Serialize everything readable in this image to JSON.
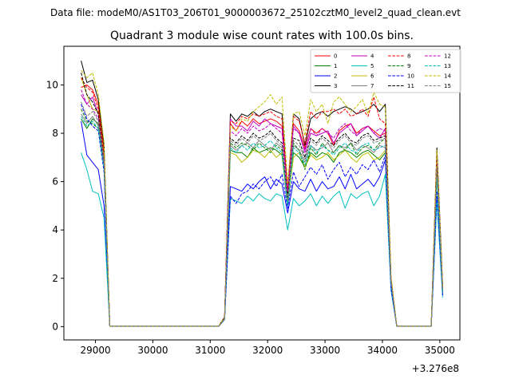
{
  "figure": {
    "suptitle": "Data file: modeM0/AS1T03_206T01_9000003672_25102cztM0_level2_quad_clean.evt"
  },
  "chart_data": {
    "type": "line",
    "title": "Quadrant 3 module wise count rates with 100.0s bins.",
    "xlabel": "",
    "ylabel": "",
    "x_offset_label": "+3.276e8",
    "xlim": [
      28450,
      35350
    ],
    "ylim": [
      -0.55,
      11.6
    ],
    "xticks": [
      29000,
      30000,
      31000,
      32000,
      33000,
      34000,
      35000
    ],
    "yticks": [
      0,
      2,
      4,
      6,
      8,
      10
    ],
    "grid": false,
    "legend_placement": "top-right",
    "legend_columns": 4,
    "x": [
      28750,
      28850,
      28950,
      29050,
      29150,
      29250,
      29350,
      29450,
      29550,
      29650,
      29750,
      29850,
      29950,
      30050,
      30150,
      30250,
      30350,
      30450,
      30550,
      30650,
      30750,
      30850,
      30950,
      31050,
      31150,
      31250,
      31350,
      31450,
      31550,
      31650,
      31750,
      31850,
      31950,
      32050,
      32150,
      32250,
      32350,
      32450,
      32550,
      32650,
      32750,
      32850,
      32950,
      33050,
      33150,
      33250,
      33350,
      33450,
      33550,
      33650,
      33750,
      33850,
      33950,
      34050,
      34150,
      34250,
      34350,
      34450,
      34550,
      34650,
      34750,
      34850,
      34950,
      35050
    ],
    "series": [
      {
        "name": "0",
        "color": "#ff0000",
        "dash": "solid",
        "values": [
          9.9,
          10.0,
          9.8,
          9.2,
          7.3,
          0.02,
          0.02,
          0.02,
          0.02,
          0.02,
          0.02,
          0.02,
          0.02,
          0.02,
          0.02,
          0.02,
          0.02,
          0.02,
          0.02,
          0.02,
          0.02,
          0.02,
          0.02,
          0.02,
          0.02,
          0.4,
          8.4,
          8.1,
          8.5,
          8.3,
          8.6,
          8.4,
          8.5,
          8.6,
          8.5,
          8.3,
          5.8,
          8.4,
          8.1,
          7.4,
          8.2,
          8.0,
          8.2,
          8.0,
          7.5,
          8.1,
          8.3,
          8.4,
          8.0,
          8.2,
          8.3,
          8.1,
          7.9,
          8.0,
          2.0,
          0.02,
          0.02,
          0.02,
          0.02,
          0.02,
          0.02,
          0.02,
          7.0,
          1.5
        ]
      },
      {
        "name": "1",
        "color": "#008000",
        "dash": "solid",
        "values": [
          8.6,
          8.2,
          8.6,
          8.4,
          6.8,
          0.02,
          0.02,
          0.02,
          0.02,
          0.02,
          0.02,
          0.02,
          0.02,
          0.02,
          0.02,
          0.02,
          0.02,
          0.02,
          0.02,
          0.02,
          0.02,
          0.02,
          0.02,
          0.02,
          0.02,
          0.3,
          7.3,
          7.2,
          7.2,
          7.0,
          7.4,
          7.2,
          7.3,
          7.4,
          7.3,
          7.1,
          5.0,
          7.2,
          7.0,
          6.6,
          7.2,
          7.0,
          7.2,
          7.1,
          6.8,
          7.2,
          7.3,
          7.2,
          7.0,
          7.2,
          7.3,
          7.1,
          6.9,
          7.2,
          1.8,
          0.02,
          0.02,
          0.02,
          0.02,
          0.02,
          0.02,
          0.02,
          6.3,
          1.4
        ]
      },
      {
        "name": "2",
        "color": "#0000ff",
        "dash": "solid",
        "values": [
          8.5,
          7.1,
          6.8,
          6.5,
          5.0,
          0.02,
          0.02,
          0.02,
          0.02,
          0.02,
          0.02,
          0.02,
          0.02,
          0.02,
          0.02,
          0.02,
          0.02,
          0.02,
          0.02,
          0.02,
          0.02,
          0.02,
          0.02,
          0.02,
          0.02,
          0.3,
          5.8,
          5.7,
          5.6,
          5.9,
          5.7,
          6.0,
          6.2,
          5.7,
          6.1,
          5.9,
          4.7,
          6.0,
          5.7,
          5.6,
          6.1,
          5.6,
          6.0,
          5.7,
          5.8,
          6.2,
          5.7,
          6.3,
          5.7,
          5.9,
          6.1,
          5.8,
          6.2,
          6.9,
          1.6,
          0.02,
          0.02,
          0.02,
          0.02,
          0.02,
          0.02,
          0.02,
          5.3,
          1.3
        ]
      },
      {
        "name": "3",
        "color": "#000000",
        "dash": "solid",
        "values": [
          11.0,
          10.1,
          10.2,
          9.4,
          7.5,
          0.02,
          0.02,
          0.02,
          0.02,
          0.02,
          0.02,
          0.02,
          0.02,
          0.02,
          0.02,
          0.02,
          0.02,
          0.02,
          0.02,
          0.02,
          0.02,
          0.02,
          0.02,
          0.02,
          0.02,
          0.4,
          8.8,
          8.5,
          8.8,
          8.7,
          8.9,
          8.7,
          8.9,
          9.0,
          8.9,
          8.8,
          5.5,
          8.8,
          8.6,
          7.5,
          8.6,
          8.8,
          8.9,
          8.7,
          8.9,
          9.0,
          9.1,
          9.0,
          8.8,
          8.9,
          9.0,
          9.2,
          8.9,
          9.2,
          2.0,
          0.02,
          0.02,
          0.02,
          0.02,
          0.02,
          0.02,
          0.02,
          7.4,
          1.7
        ]
      },
      {
        "name": "4",
        "color": "#bf00bf",
        "dash": "solid",
        "values": [
          9.6,
          9.2,
          9.5,
          8.8,
          7.0,
          0.02,
          0.02,
          0.02,
          0.02,
          0.02,
          0.02,
          0.02,
          0.02,
          0.02,
          0.02,
          0.02,
          0.02,
          0.02,
          0.02,
          0.02,
          0.02,
          0.02,
          0.02,
          0.02,
          0.02,
          0.4,
          8.6,
          8.3,
          8.3,
          8.1,
          8.5,
          8.3,
          8.6,
          8.4,
          8.3,
          8.2,
          5.6,
          8.3,
          8.0,
          7.2,
          8.0,
          7.9,
          8.0,
          8.1,
          7.6,
          8.0,
          8.2,
          8.4,
          7.9,
          8.1,
          8.3,
          8.0,
          7.8,
          8.2,
          1.9,
          0.02,
          0.02,
          0.02,
          0.02,
          0.02,
          0.02,
          0.02,
          6.8,
          1.5
        ]
      },
      {
        "name": "5",
        "color": "#00bfbf",
        "dash": "solid",
        "values": [
          7.2,
          6.5,
          5.6,
          5.5,
          4.5,
          0.02,
          0.02,
          0.02,
          0.02,
          0.02,
          0.02,
          0.02,
          0.02,
          0.02,
          0.02,
          0.02,
          0.02,
          0.02,
          0.02,
          0.02,
          0.02,
          0.02,
          0.02,
          0.02,
          0.02,
          0.3,
          5.3,
          5.2,
          5.1,
          5.4,
          5.2,
          5.5,
          5.3,
          5.2,
          5.5,
          5.4,
          4.0,
          5.3,
          5.0,
          5.2,
          5.5,
          5.0,
          5.4,
          5.1,
          5.4,
          5.6,
          4.9,
          5.5,
          5.3,
          5.5,
          5.6,
          5.0,
          5.4,
          6.3,
          1.5,
          0.02,
          0.02,
          0.02,
          0.02,
          0.02,
          0.02,
          0.02,
          5.2,
          1.2
        ]
      },
      {
        "name": "6",
        "color": "#bfbf00",
        "dash": "solid",
        "values": [
          10.3,
          9.6,
          9.0,
          8.9,
          7.1,
          0.02,
          0.02,
          0.02,
          0.02,
          0.02,
          0.02,
          0.02,
          0.02,
          0.02,
          0.02,
          0.02,
          0.02,
          0.02,
          0.02,
          0.02,
          0.02,
          0.02,
          0.02,
          0.02,
          0.02,
          0.4,
          7.2,
          7.1,
          6.8,
          7.0,
          7.3,
          7.2,
          7.0,
          7.3,
          7.0,
          7.2,
          5.1,
          7.0,
          7.2,
          6.6,
          7.1,
          6.9,
          7.0,
          7.2,
          6.9,
          7.1,
          7.3,
          7.0,
          6.8,
          7.1,
          7.2,
          6.9,
          7.0,
          7.3,
          1.8,
          0.02,
          0.02,
          0.02,
          0.02,
          0.02,
          0.02,
          0.02,
          6.9,
          1.5
        ]
      },
      {
        "name": "7",
        "color": "#808080",
        "dash": "solid",
        "values": [
          8.8,
          8.4,
          8.7,
          8.3,
          6.7,
          0.02,
          0.02,
          0.02,
          0.02,
          0.02,
          0.02,
          0.02,
          0.02,
          0.02,
          0.02,
          0.02,
          0.02,
          0.02,
          0.02,
          0.02,
          0.02,
          0.02,
          0.02,
          0.02,
          0.02,
          0.3,
          7.5,
          7.3,
          7.5,
          7.6,
          7.4,
          7.7,
          7.5,
          7.3,
          7.6,
          7.4,
          5.2,
          7.5,
          7.3,
          6.8,
          7.5,
          7.3,
          7.4,
          7.6,
          7.2,
          7.5,
          7.4,
          7.6,
          7.3,
          7.5,
          7.4,
          7.2,
          7.5,
          7.4,
          1.8,
          0.02,
          0.02,
          0.02,
          0.02,
          0.02,
          0.02,
          0.02,
          6.6,
          1.4
        ]
      },
      {
        "name": "8",
        "color": "#ff0000",
        "dash": "dashed",
        "values": [
          10.3,
          9.9,
          9.7,
          9.0,
          7.2,
          0.02,
          0.02,
          0.02,
          0.02,
          0.02,
          0.02,
          0.02,
          0.02,
          0.02,
          0.02,
          0.02,
          0.02,
          0.02,
          0.02,
          0.02,
          0.02,
          0.02,
          0.02,
          0.02,
          0.02,
          0.4,
          8.5,
          8.4,
          8.7,
          8.6,
          8.8,
          8.7,
          8.8,
          8.9,
          8.7,
          8.6,
          5.7,
          8.7,
          8.5,
          7.6,
          8.9,
          8.6,
          8.9,
          8.9,
          9.0,
          8.8,
          9.0,
          8.7,
          8.8,
          9.0,
          8.7,
          9.5,
          8.6,
          8.4,
          2.0,
          0.02,
          0.02,
          0.02,
          0.02,
          0.02,
          0.02,
          0.02,
          7.2,
          1.6
        ]
      },
      {
        "name": "9",
        "color": "#008000",
        "dash": "dashed",
        "values": [
          9.0,
          8.5,
          8.4,
          8.2,
          6.7,
          0.02,
          0.02,
          0.02,
          0.02,
          0.02,
          0.02,
          0.02,
          0.02,
          0.02,
          0.02,
          0.02,
          0.02,
          0.02,
          0.02,
          0.02,
          0.02,
          0.02,
          0.02,
          0.02,
          0.02,
          0.3,
          7.6,
          7.4,
          7.6,
          7.5,
          7.3,
          7.6,
          7.4,
          7.2,
          7.5,
          7.3,
          5.1,
          7.6,
          7.3,
          6.5,
          7.4,
          7.1,
          7.6,
          7.3,
          7.2,
          7.5,
          7.3,
          7.6,
          7.1,
          7.4,
          7.5,
          7.3,
          7.6,
          7.8,
          1.8,
          0.02,
          0.02,
          0.02,
          0.02,
          0.02,
          0.02,
          0.02,
          6.4,
          1.4
        ]
      },
      {
        "name": "10",
        "color": "#0000ff",
        "dash": "dashed",
        "values": [
          9.2,
          8.6,
          8.3,
          8.1,
          6.4,
          0.02,
          0.02,
          0.02,
          0.02,
          0.02,
          0.02,
          0.02,
          0.02,
          0.02,
          0.02,
          0.02,
          0.02,
          0.02,
          0.02,
          0.02,
          0.02,
          0.02,
          0.02,
          0.02,
          0.02,
          0.3,
          5.4,
          5.1,
          5.5,
          5.6,
          5.9,
          5.7,
          6.0,
          6.2,
          5.8,
          6.3,
          4.9,
          6.4,
          5.8,
          6.2,
          6.6,
          6.3,
          6.7,
          6.1,
          6.5,
          6.8,
          6.2,
          6.6,
          6.3,
          6.7,
          6.5,
          6.9,
          6.4,
          7.1,
          1.6,
          0.02,
          0.02,
          0.02,
          0.02,
          0.02,
          0.02,
          0.02,
          5.6,
          1.3
        ]
      },
      {
        "name": "11",
        "color": "#000000",
        "dash": "dashed",
        "values": [
          10.5,
          9.6,
          9.3,
          8.8,
          6.9,
          0.02,
          0.02,
          0.02,
          0.02,
          0.02,
          0.02,
          0.02,
          0.02,
          0.02,
          0.02,
          0.02,
          0.02,
          0.02,
          0.02,
          0.02,
          0.02,
          0.02,
          0.02,
          0.02,
          0.02,
          0.4,
          7.8,
          7.6,
          7.9,
          7.7,
          8.0,
          7.8,
          7.9,
          8.1,
          7.8,
          7.6,
          5.3,
          7.8,
          7.7,
          7.0,
          7.8,
          7.6,
          7.9,
          7.7,
          7.5,
          7.8,
          8.0,
          7.7,
          7.6,
          7.9,
          8.0,
          7.7,
          7.8,
          7.9,
          1.9,
          0.02,
          0.02,
          0.02,
          0.02,
          0.02,
          0.02,
          0.02,
          6.7,
          1.5
        ]
      },
      {
        "name": "12",
        "color": "#bf00bf",
        "dash": "dashed",
        "values": [
          9.8,
          9.2,
          9.0,
          8.6,
          6.8,
          0.02,
          0.02,
          0.02,
          0.02,
          0.02,
          0.02,
          0.02,
          0.02,
          0.02,
          0.02,
          0.02,
          0.02,
          0.02,
          0.02,
          0.02,
          0.02,
          0.02,
          0.02,
          0.02,
          0.02,
          0.4,
          8.1,
          7.9,
          8.2,
          8.0,
          8.3,
          8.1,
          8.2,
          8.4,
          8.2,
          8.0,
          5.6,
          8.2,
          8.0,
          7.3,
          8.2,
          7.9,
          8.2,
          8.0,
          7.8,
          8.2,
          8.4,
          8.1,
          7.9,
          8.2,
          8.3,
          8.0,
          8.2,
          8.1,
          1.9,
          0.02,
          0.02,
          0.02,
          0.02,
          0.02,
          0.02,
          0.02,
          6.9,
          1.5
        ]
      },
      {
        "name": "13",
        "color": "#00bfbf",
        "dash": "dashed",
        "values": [
          8.7,
          8.3,
          8.5,
          8.2,
          6.5,
          0.02,
          0.02,
          0.02,
          0.02,
          0.02,
          0.02,
          0.02,
          0.02,
          0.02,
          0.02,
          0.02,
          0.02,
          0.02,
          0.02,
          0.02,
          0.02,
          0.02,
          0.02,
          0.02,
          0.02,
          0.3,
          7.4,
          7.2,
          7.5,
          7.3,
          7.6,
          7.4,
          7.5,
          7.7,
          7.4,
          7.2,
          5.0,
          7.4,
          7.2,
          6.7,
          7.5,
          7.2,
          7.5,
          7.3,
          7.1,
          7.4,
          7.6,
          7.3,
          7.2,
          7.5,
          7.6,
          7.3,
          7.4,
          7.5,
          1.8,
          0.02,
          0.02,
          0.02,
          0.02,
          0.02,
          0.02,
          0.02,
          6.2,
          1.4
        ]
      },
      {
        "name": "14",
        "color": "#bfbf00",
        "dash": "dashed",
        "values": [
          10.6,
          10.3,
          10.5,
          9.6,
          7.6,
          0.02,
          0.02,
          0.02,
          0.02,
          0.02,
          0.02,
          0.02,
          0.02,
          0.02,
          0.02,
          0.02,
          0.02,
          0.02,
          0.02,
          0.02,
          0.02,
          0.02,
          0.02,
          0.02,
          0.02,
          0.4,
          8.3,
          8.1,
          8.6,
          8.5,
          8.9,
          9.1,
          9.3,
          9.6,
          9.2,
          9.5,
          5.9,
          8.8,
          8.9,
          7.9,
          9.4,
          8.9,
          9.2,
          8.4,
          9.3,
          9.5,
          9.2,
          8.9,
          9.1,
          9.4,
          8.8,
          9.7,
          9.2,
          9.1,
          2.1,
          0.02,
          0.02,
          0.02,
          0.02,
          0.02,
          0.02,
          0.02,
          7.3,
          1.6
        ]
      },
      {
        "name": "15",
        "color": "#808080",
        "dash": "dashed",
        "values": [
          9.3,
          8.7,
          8.9,
          8.5,
          6.9,
          0.02,
          0.02,
          0.02,
          0.02,
          0.02,
          0.02,
          0.02,
          0.02,
          0.02,
          0.02,
          0.02,
          0.02,
          0.02,
          0.02,
          0.02,
          0.02,
          0.02,
          0.02,
          0.02,
          0.02,
          0.3,
          7.7,
          7.5,
          7.8,
          7.6,
          7.9,
          7.7,
          7.8,
          8.0,
          7.7,
          7.5,
          5.2,
          7.7,
          7.5,
          6.9,
          7.7,
          7.5,
          7.8,
          7.6,
          7.4,
          7.7,
          7.9,
          7.6,
          7.5,
          7.8,
          7.9,
          7.6,
          7.7,
          7.8,
          1.9,
          0.02,
          0.02,
          0.02,
          0.02,
          0.02,
          0.02,
          0.02,
          6.6,
          1.5
        ]
      }
    ]
  }
}
